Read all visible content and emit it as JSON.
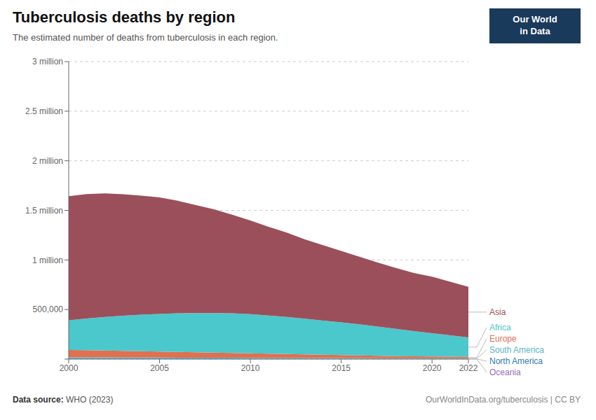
{
  "chart_data": {
    "type": "area",
    "stacked": true,
    "grid": true,
    "title": "Tuberculosis deaths by region",
    "subtitle": "The estimated number of deaths from tuberculosis in each region.",
    "x": [
      2000,
      2001,
      2002,
      2003,
      2004,
      2005,
      2006,
      2007,
      2008,
      2009,
      2010,
      2011,
      2012,
      2013,
      2014,
      2015,
      2016,
      2017,
      2018,
      2019,
      2020,
      2021,
      2022
    ],
    "xlim": [
      2000,
      2022
    ],
    "xticks": [
      2000,
      2005,
      2010,
      2015,
      2020,
      2022
    ],
    "ylim": [
      0,
      3000000
    ],
    "yticks": [
      {
        "value": 0,
        "label": ""
      },
      {
        "value": 500000,
        "label": "500,000"
      },
      {
        "value": 1000000,
        "label": "1 million"
      },
      {
        "value": 1500000,
        "label": "1.5 million"
      },
      {
        "value": 2000000,
        "label": "2 million"
      },
      {
        "value": 2500000,
        "label": "2.5 million"
      },
      {
        "value": 3000000,
        "label": "3 million"
      }
    ],
    "series": [
      {
        "name": "Oceania",
        "color": "#9b6bba",
        "values": [
          500,
          500,
          500,
          500,
          500,
          500,
          500,
          500,
          500,
          500,
          500,
          500,
          500,
          500,
          500,
          500,
          500,
          500,
          500,
          500,
          500,
          500,
          500
        ]
      },
      {
        "name": "North America",
        "color": "#2e7bb5",
        "values": [
          2000,
          2000,
          2000,
          2000,
          2000,
          2000,
          2000,
          2000,
          2000,
          2000,
          2000,
          2000,
          2000,
          2000,
          2000,
          2000,
          2000,
          2000,
          2000,
          2000,
          2000,
          2000,
          2000
        ]
      },
      {
        "name": "South America",
        "color": "#5ab5c8",
        "values": [
          15000,
          15000,
          14500,
          14000,
          13500,
          13000,
          12500,
          12000,
          11500,
          11000,
          10500,
          10000,
          9500,
          9000,
          8500,
          8000,
          7500,
          7000,
          6500,
          6000,
          6000,
          6000,
          5500
        ]
      },
      {
        "name": "Europe",
        "color": "#e07050",
        "values": [
          75000,
          72000,
          69000,
          66000,
          63000,
          60000,
          57000,
          54000,
          51000,
          48000,
          45000,
          42000,
          39000,
          36000,
          33000,
          30000,
          27000,
          24000,
          21000,
          19000,
          18000,
          17000,
          16000
        ]
      },
      {
        "name": "Africa",
        "color": "#4bc8cc",
        "values": [
          300000,
          320000,
          340000,
          355000,
          370000,
          380000,
          390000,
          395000,
          400000,
          400000,
          395000,
          385000,
          375000,
          360000,
          345000,
          330000,
          315000,
          295000,
          275000,
          255000,
          235000,
          215000,
          195000
        ]
      },
      {
        "name": "Asia",
        "color": "#9b4f5a",
        "values": [
          1250000,
          1255000,
          1245000,
          1225000,
          1200000,
          1175000,
          1135000,
          1090000,
          1045000,
          995000,
          945000,
          895000,
          850000,
          800000,
          760000,
          720000,
          680000,
          645000,
          615000,
          585000,
          570000,
          540000,
          510000
        ]
      }
    ],
    "source_label": "Data source:",
    "source": "WHO (2023)",
    "url": "OurWorldInData.org/tuberculosis | CC BY",
    "logo": {
      "text": "Our World\nin Data",
      "color": "#1a3a5c"
    }
  }
}
